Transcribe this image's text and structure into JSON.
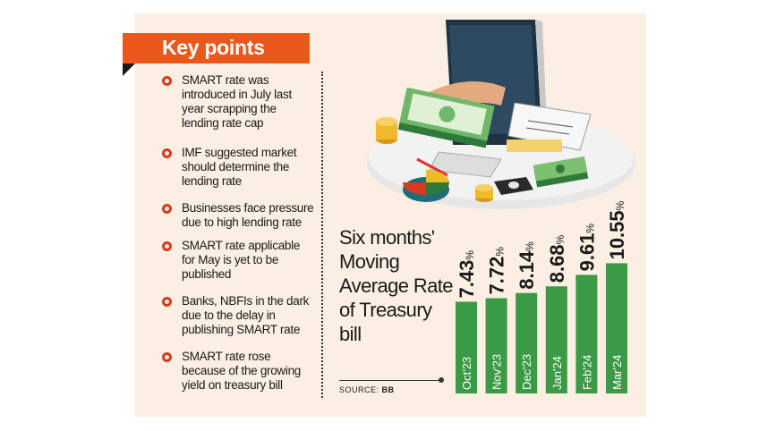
{
  "key_points": {
    "title": "Key points",
    "items": [
      "SMART rate was introduced in July last year scrapping the lending rate cap",
      "IMF suggested market should determine the lending rate",
      "Businesses face pressure due to high lending rate",
      "SMART rate applicable for May is yet to be published",
      "Banks, NBFIs in the dark due to the delay in publishing SMART rate",
      "SMART rate rose because of the growing yield on treasury bill"
    ]
  },
  "source": {
    "label": "SOURCE:",
    "value": "BB"
  },
  "colors": {
    "accent": "#e9591b",
    "bar": "#3a9a45",
    "panel": "#fbeee2",
    "bullet": "#d93a1f"
  },
  "chart_data": {
    "type": "bar",
    "title": "Six months' Moving Average Rate of Treasury bill",
    "categories": [
      "Oct'23",
      "Nov'23",
      "Dec'23",
      "Jan'24",
      "Feb'24",
      "Mar'24"
    ],
    "values": [
      7.43,
      7.72,
      8.14,
      8.68,
      9.61,
      10.55
    ],
    "value_labels": [
      "7.43",
      "7.72",
      "8.14",
      "8.68",
      "9.61",
      "10.55"
    ],
    "unit": "%",
    "xlabel": "",
    "ylabel": "",
    "grid": false
  }
}
